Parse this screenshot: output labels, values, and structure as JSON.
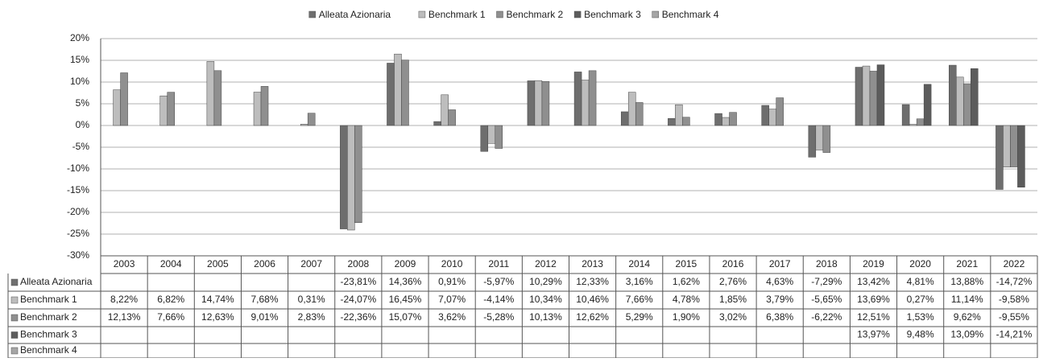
{
  "chart_data": {
    "type": "bar",
    "categories": [
      "2003",
      "2004",
      "2005",
      "2006",
      "2007",
      "2008",
      "2009",
      "2010",
      "2011",
      "2012",
      "2013",
      "2014",
      "2015",
      "2016",
      "2017",
      "2018",
      "2019",
      "2020",
      "2021",
      "2022"
    ],
    "series": [
      {
        "name": "Alleata Azionaria",
        "color": "#6e6e6e",
        "values": [
          null,
          null,
          null,
          null,
          null,
          -23.81,
          14.36,
          0.91,
          -5.97,
          10.29,
          12.33,
          3.16,
          1.62,
          2.76,
          4.63,
          -7.29,
          13.42,
          4.81,
          13.88,
          -14.72
        ],
        "value_labels": [
          null,
          null,
          null,
          null,
          null,
          "-23,81%",
          "14,36%",
          "0,91%",
          "-5,97%",
          "10,29%",
          "12,33%",
          "3,16%",
          "1,62%",
          "2,76%",
          "4,63%",
          "-7,29%",
          "13,42%",
          "4,81%",
          "13,88%",
          "-14,72%"
        ]
      },
      {
        "name": "Benchmark 1",
        "color": "#bdbdbd",
        "values": [
          8.22,
          6.82,
          14.74,
          7.68,
          0.31,
          -24.07,
          16.45,
          7.07,
          -4.14,
          10.34,
          10.46,
          7.66,
          4.78,
          1.85,
          3.79,
          -5.65,
          13.69,
          0.27,
          11.14,
          -9.58
        ],
        "value_labels": [
          "8,22%",
          "6,82%",
          "14,74%",
          "7,68%",
          "0,31%",
          "-24,07%",
          "16,45%",
          "7,07%",
          "-4,14%",
          "10,34%",
          "10,46%",
          "7,66%",
          "4,78%",
          "1,85%",
          "3,79%",
          "-5,65%",
          "13,69%",
          "0,27%",
          "11,14%",
          "-9,58%"
        ]
      },
      {
        "name": "Benchmark 2",
        "color": "#8f8f8f",
        "values": [
          12.13,
          7.66,
          12.63,
          9.01,
          2.83,
          -22.36,
          15.07,
          3.62,
          -5.28,
          10.13,
          12.62,
          5.29,
          1.9,
          3.02,
          6.38,
          -6.22,
          12.51,
          1.53,
          9.62,
          -9.55
        ],
        "value_labels": [
          "12,13%",
          "7,66%",
          "12,63%",
          "9,01%",
          "2,83%",
          "-22,36%",
          "15,07%",
          "3,62%",
          "-5,28%",
          "10,13%",
          "12,62%",
          "5,29%",
          "1,90%",
          "3,02%",
          "6,38%",
          "-6,22%",
          "12,51%",
          "1,53%",
          "9,62%",
          "-9,55%"
        ]
      },
      {
        "name": "Benchmark 3",
        "color": "#5c5c5c",
        "values": [
          null,
          null,
          null,
          null,
          null,
          null,
          null,
          null,
          null,
          null,
          null,
          null,
          null,
          null,
          null,
          null,
          13.97,
          9.48,
          13.09,
          -14.21
        ],
        "value_labels": [
          null,
          null,
          null,
          null,
          null,
          null,
          null,
          null,
          null,
          null,
          null,
          null,
          null,
          null,
          null,
          null,
          "13,97%",
          "9,48%",
          "13,09%",
          "-14,21%"
        ]
      },
      {
        "name": "Benchmark 4",
        "color": "#a5a5a5",
        "values": [
          null,
          null,
          null,
          null,
          null,
          null,
          null,
          null,
          null,
          null,
          null,
          null,
          null,
          null,
          null,
          null,
          null,
          null,
          null,
          null
        ]
      }
    ],
    "ylim": [
      -30,
      20
    ],
    "yticks": [
      {
        "value": -30,
        "label": "-30%"
      },
      {
        "value": -25,
        "label": "-25%"
      },
      {
        "value": -20,
        "label": "-20%"
      },
      {
        "value": -15,
        "label": "-15%"
      },
      {
        "value": -10,
        "label": "-10%"
      },
      {
        "value": -5,
        "label": "-5%"
      },
      {
        "value": 0,
        "label": "0%"
      },
      {
        "value": 5,
        "label": "5%"
      },
      {
        "value": 10,
        "label": "10%"
      },
      {
        "value": 15,
        "label": "15%"
      },
      {
        "value": 20,
        "label": "20%"
      }
    ],
    "grid": true,
    "legend": "top"
  }
}
